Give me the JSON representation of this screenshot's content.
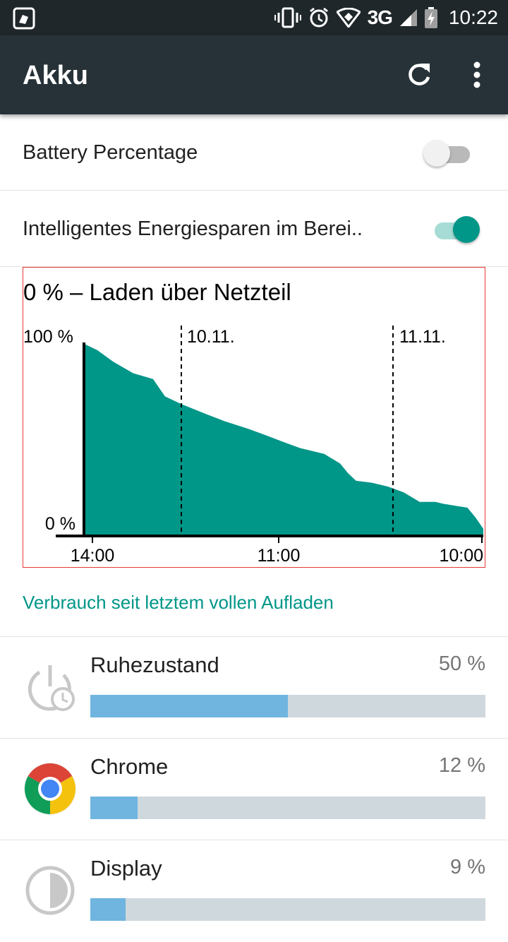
{
  "status_bar": {
    "network": "3G",
    "time": "10:22",
    "icons": [
      "notification-app-icon",
      "vibrate-icon",
      "alarm-icon",
      "wifi-icon",
      "signal-icon",
      "battery-charging-icon"
    ]
  },
  "app_bar": {
    "title": "Akku",
    "actions": [
      "refresh-icon",
      "more-vert-icon"
    ]
  },
  "preferences": [
    {
      "label": "Battery Percentage",
      "enabled": false
    },
    {
      "label": "Intelligentes Energiesparen im Berei..",
      "enabled": true
    }
  ],
  "chart": {
    "title": "0 % – Laden über Netzteil",
    "chart_data": {
      "type": "area",
      "title": "0 % – Laden über Netzteil",
      "y_tick_labels": [
        "100 %",
        "0 %"
      ],
      "ylim": [
        0,
        100
      ],
      "x_tick_labels": [
        "14:00",
        "11:00",
        "10:00"
      ],
      "date_markers": [
        "10.11.",
        "11.11."
      ],
      "series": [
        {
          "color": "#009688",
          "x_fraction": [
            0,
            0.03,
            0.07,
            0.12,
            0.17,
            0.2,
            0.24,
            0.3,
            0.35,
            0.41,
            0.45,
            0.5,
            0.54,
            0.6,
            0.64,
            0.66,
            0.68,
            0.72,
            0.76,
            0.8,
            0.84,
            0.88,
            0.9,
            0.93,
            0.96,
            0.98,
            1
          ],
          "values": [
            99,
            96,
            90,
            84,
            81,
            72,
            68,
            63,
            59,
            55,
            52,
            48,
            45,
            42,
            37,
            32,
            28,
            27,
            25,
            22,
            17,
            17,
            16,
            15,
            14,
            9,
            3
          ]
        }
      ],
      "grid": false,
      "legend": "none"
    }
  },
  "history_label": "Verbrauch seit letztem vollen Aufladen",
  "apps": [
    {
      "name": "Ruhezustand",
      "percent_label": "50 %",
      "percent": 50,
      "icon": "standby-clock-icon"
    },
    {
      "name": "Chrome",
      "percent_label": "12 %",
      "percent": 12,
      "icon": "chrome-icon"
    },
    {
      "name": "Display",
      "percent_label": "9 %",
      "percent": 9,
      "icon": "display-brightness-icon"
    }
  ],
  "colors": {
    "accent": "#009688",
    "toolbar": "#263238",
    "status_bar": "#1f272b",
    "usage_bar": "#6fb5e0",
    "usage_track": "#cfd8dc"
  }
}
